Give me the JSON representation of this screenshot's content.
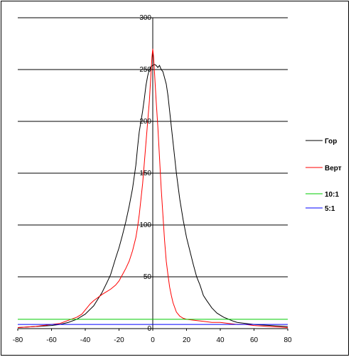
{
  "chart_data": {
    "type": "line",
    "xlim": [
      -80,
      80
    ],
    "ylim": [
      0,
      300
    ],
    "x_ticks": [
      -80,
      -60,
      -40,
      -20,
      0,
      20,
      40,
      60,
      80
    ],
    "y_ticks": [
      0,
      50,
      100,
      150,
      200,
      250,
      300
    ],
    "grid": "horizontal",
    "legend_position": "right",
    "series": [
      {
        "name": "Гор",
        "color": "#000000",
        "points": [
          [
            -80,
            1
          ],
          [
            -70,
            2
          ],
          [
            -60,
            3
          ],
          [
            -55,
            4
          ],
          [
            -50,
            6
          ],
          [
            -45,
            9
          ],
          [
            -40,
            14
          ],
          [
            -35,
            22
          ],
          [
            -30,
            35
          ],
          [
            -27,
            45
          ],
          [
            -25,
            52
          ],
          [
            -22,
            68
          ],
          [
            -20,
            78
          ],
          [
            -18,
            90
          ],
          [
            -16,
            103
          ],
          [
            -14,
            118
          ],
          [
            -12,
            135
          ],
          [
            -10,
            158
          ],
          [
            -9,
            175
          ],
          [
            -8,
            190
          ],
          [
            -7,
            200
          ],
          [
            -6,
            210
          ],
          [
            -5,
            222
          ],
          [
            -4,
            235
          ],
          [
            -3,
            244
          ],
          [
            -2,
            250
          ],
          [
            -1,
            253
          ],
          [
            0,
            254
          ],
          [
            1,
            255
          ],
          [
            2,
            254
          ],
          [
            3,
            252
          ],
          [
            4,
            254
          ],
          [
            5,
            250
          ],
          [
            6,
            248
          ],
          [
            7,
            242
          ],
          [
            8,
            236
          ],
          [
            9,
            225
          ],
          [
            10,
            210
          ],
          [
            12,
            180
          ],
          [
            14,
            150
          ],
          [
            16,
            125
          ],
          [
            18,
            105
          ],
          [
            20,
            88
          ],
          [
            22,
            75
          ],
          [
            24,
            62
          ],
          [
            26,
            50
          ],
          [
            28,
            42
          ],
          [
            30,
            32
          ],
          [
            32,
            27
          ],
          [
            35,
            20
          ],
          [
            38,
            15
          ],
          [
            40,
            13
          ],
          [
            42,
            11
          ],
          [
            45,
            9
          ],
          [
            48,
            7
          ],
          [
            50,
            6
          ],
          [
            55,
            5
          ],
          [
            60,
            4
          ],
          [
            70,
            3
          ],
          [
            80,
            2
          ]
        ]
      },
      {
        "name": "Верт",
        "color": "#ff0000",
        "points": [
          [
            -80,
            1
          ],
          [
            -70,
            2
          ],
          [
            -60,
            4
          ],
          [
            -55,
            5
          ],
          [
            -50,
            8
          ],
          [
            -45,
            11
          ],
          [
            -42,
            14
          ],
          [
            -40,
            18
          ],
          [
            -37,
            24
          ],
          [
            -35,
            27
          ],
          [
            -30,
            33
          ],
          [
            -27,
            36
          ],
          [
            -25,
            38
          ],
          [
            -22,
            42
          ],
          [
            -20,
            46
          ],
          [
            -18,
            52
          ],
          [
            -16,
            58
          ],
          [
            -14,
            65
          ],
          [
            -12,
            75
          ],
          [
            -10,
            88
          ],
          [
            -9,
            98
          ],
          [
            -8,
            110
          ],
          [
            -7,
            125
          ],
          [
            -6,
            140
          ],
          [
            -5,
            160
          ],
          [
            -4,
            180
          ],
          [
            -3,
            200
          ],
          [
            -2,
            220
          ],
          [
            -1,
            248
          ],
          [
            -0.5,
            262
          ],
          [
            0,
            270
          ],
          [
            0.5,
            262
          ],
          [
            1,
            248
          ],
          [
            2,
            220
          ],
          [
            3,
            195
          ],
          [
            4,
            165
          ],
          [
            5,
            135
          ],
          [
            6,
            110
          ],
          [
            7,
            85
          ],
          [
            8,
            65
          ],
          [
            9,
            52
          ],
          [
            10,
            40
          ],
          [
            11,
            32
          ],
          [
            12,
            25
          ],
          [
            14,
            16
          ],
          [
            16,
            12
          ],
          [
            18,
            10
          ],
          [
            20,
            9
          ],
          [
            25,
            8
          ],
          [
            30,
            7
          ],
          [
            35,
            6
          ],
          [
            40,
            6
          ],
          [
            45,
            5
          ],
          [
            50,
            4
          ],
          [
            55,
            4
          ],
          [
            60,
            3
          ],
          [
            70,
            2
          ],
          [
            80,
            1
          ]
        ]
      },
      {
        "name": "10:1",
        "color": "#00cc00",
        "points": [
          [
            -80,
            9
          ],
          [
            80,
            9
          ]
        ]
      },
      {
        "name": "5:1",
        "color": "#0000ff",
        "points": [
          [
            -80,
            4
          ],
          [
            80,
            4
          ]
        ]
      }
    ]
  }
}
